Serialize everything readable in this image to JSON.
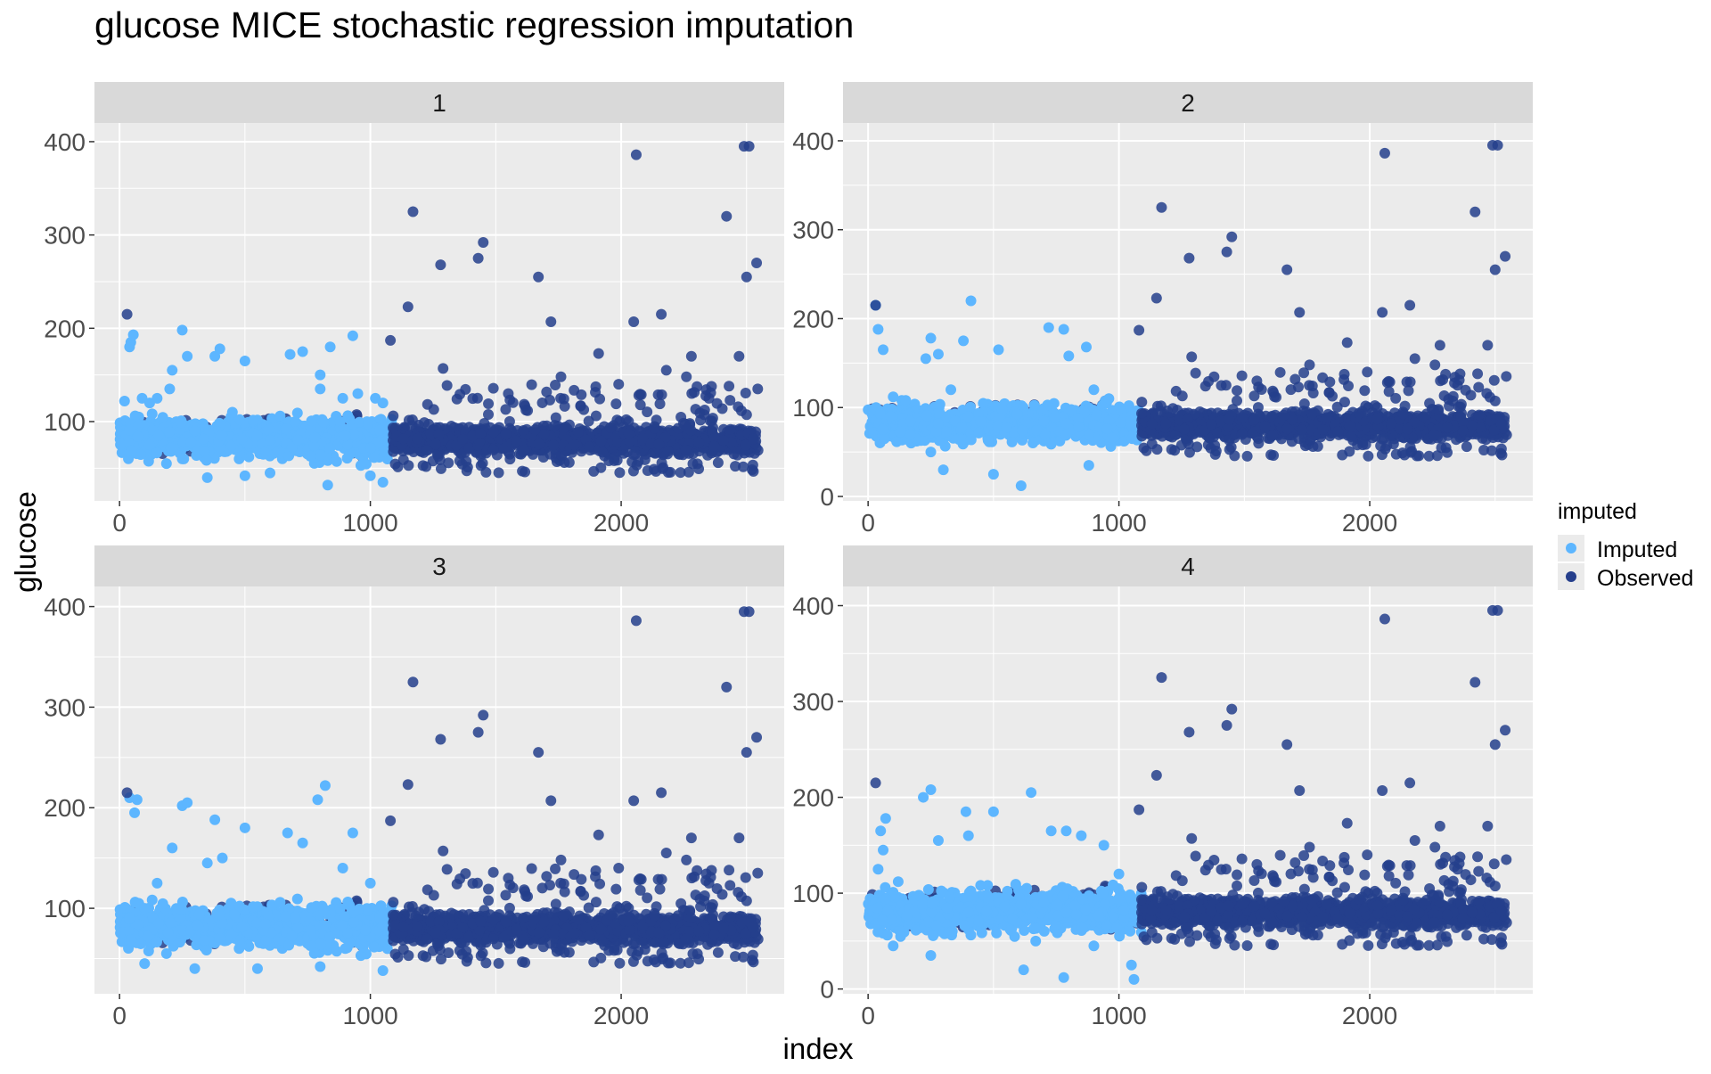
{
  "chart_data": {
    "type": "scatter",
    "title": "glucose MICE stochastic regression imputation",
    "xlabel": "index",
    "ylabel": "glucose",
    "legend": {
      "title": "imputed",
      "placement": "right",
      "entries": [
        {
          "label": "Imputed",
          "color": "#5DB6FF"
        },
        {
          "label": "Observed",
          "color": "#253F8C"
        }
      ]
    },
    "colors": {
      "imputed": "#5DB6FF",
      "observed": "#253F8C",
      "panel_bg": "#EBEBEB",
      "strip_bg": "#D9D9D9",
      "grid": "#FFFFFF"
    },
    "grid": true,
    "n_points": 2550,
    "imputed_index_range": [
      0,
      1090
    ],
    "observed_index_range": [
      0,
      2550
    ],
    "panels": [
      {
        "strip": "1",
        "xlim": [
          -100,
          2650
        ],
        "ylim": [
          15,
          420
        ],
        "x_ticks": [
          0,
          1000,
          2000
        ],
        "y_ticks": [
          100,
          200,
          300,
          400
        ],
        "imputed_points": [
          [
            20,
            122
          ],
          [
            40,
            180
          ],
          [
            45,
            185
          ],
          [
            55,
            193
          ],
          [
            90,
            125
          ],
          [
            120,
            120
          ],
          [
            150,
            125
          ],
          [
            200,
            135
          ],
          [
            210,
            155
          ],
          [
            250,
            198
          ],
          [
            270,
            170
          ],
          [
            380,
            170
          ],
          [
            400,
            178
          ],
          [
            500,
            165
          ],
          [
            680,
            172
          ],
          [
            730,
            175
          ],
          [
            800,
            135
          ],
          [
            840,
            180
          ],
          [
            890,
            125
          ],
          [
            930,
            192
          ],
          [
            1020,
            125
          ],
          [
            1050,
            120
          ],
          [
            120,
            75
          ],
          [
            300,
            90
          ],
          [
            600,
            80
          ],
          [
            900,
            85
          ],
          [
            350,
            40
          ],
          [
            500,
            42
          ],
          [
            830,
            32
          ],
          [
            1050,
            35
          ],
          [
            1000,
            42
          ],
          [
            600,
            45
          ],
          [
            250,
            60
          ],
          [
            700,
            100
          ],
          [
            450,
            110
          ],
          [
            950,
            130
          ],
          [
            800,
            150
          ]
        ]
      },
      {
        "strip": "2",
        "xlim": [
          -100,
          2650
        ],
        "ylim": [
          -5,
          420
        ],
        "x_ticks": [
          0,
          1000,
          2000
        ],
        "y_ticks": [
          0,
          100,
          200,
          300,
          400
        ],
        "imputed_points": [
          [
            30,
            215
          ],
          [
            40,
            188
          ],
          [
            60,
            165
          ],
          [
            100,
            112
          ],
          [
            150,
            108
          ],
          [
            230,
            155
          ],
          [
            250,
            178
          ],
          [
            280,
            160
          ],
          [
            330,
            120
          ],
          [
            380,
            175
          ],
          [
            410,
            220
          ],
          [
            520,
            165
          ],
          [
            720,
            190
          ],
          [
            780,
            188
          ],
          [
            800,
            158
          ],
          [
            870,
            168
          ],
          [
            900,
            120
          ],
          [
            960,
            110
          ],
          [
            300,
            30
          ],
          [
            500,
            25
          ],
          [
            610,
            12
          ],
          [
            880,
            35
          ],
          [
            250,
            50
          ],
          [
            1050,
            80
          ],
          [
            400,
            90
          ],
          [
            700,
            85
          ]
        ]
      },
      {
        "strip": "3",
        "xlim": [
          -100,
          2650
        ],
        "ylim": [
          15,
          420
        ],
        "x_ticks": [
          0,
          1000,
          2000
        ],
        "y_ticks": [
          100,
          200,
          300,
          400
        ],
        "imputed_points": [
          [
            40,
            210
          ],
          [
            60,
            195
          ],
          [
            70,
            208
          ],
          [
            100,
            100
          ],
          [
            150,
            125
          ],
          [
            210,
            160
          ],
          [
            250,
            202
          ],
          [
            270,
            205
          ],
          [
            350,
            145
          ],
          [
            380,
            188
          ],
          [
            410,
            150
          ],
          [
            500,
            180
          ],
          [
            670,
            175
          ],
          [
            730,
            165
          ],
          [
            790,
            208
          ],
          [
            820,
            222
          ],
          [
            890,
            140
          ],
          [
            930,
            175
          ],
          [
            1000,
            125
          ],
          [
            100,
            45
          ],
          [
            300,
            40
          ],
          [
            550,
            40
          ],
          [
            800,
            42
          ],
          [
            1050,
            38
          ],
          [
            400,
            70
          ],
          [
            700,
            90
          ],
          [
            900,
            60
          ]
        ]
      },
      {
        "strip": "4",
        "xlim": [
          -100,
          2650
        ],
        "ylim": [
          -5,
          420
        ],
        "x_ticks": [
          0,
          1000,
          2000
        ],
        "y_ticks": [
          0,
          100,
          200,
          300,
          400
        ],
        "imputed_points": [
          [
            40,
            125
          ],
          [
            50,
            165
          ],
          [
            60,
            145
          ],
          [
            70,
            178
          ],
          [
            120,
            112
          ],
          [
            220,
            200
          ],
          [
            250,
            208
          ],
          [
            280,
            155
          ],
          [
            390,
            185
          ],
          [
            400,
            160
          ],
          [
            500,
            185
          ],
          [
            650,
            205
          ],
          [
            730,
            165
          ],
          [
            790,
            165
          ],
          [
            850,
            160
          ],
          [
            940,
            150
          ],
          [
            1000,
            120
          ],
          [
            100,
            45
          ],
          [
            250,
            35
          ],
          [
            620,
            20
          ],
          [
            780,
            12
          ],
          [
            900,
            45
          ],
          [
            1050,
            25
          ],
          [
            1060,
            10
          ],
          [
            400,
            80
          ],
          [
            700,
            90
          ]
        ]
      }
    ],
    "observed_outliers": [
      [
        30,
        215
      ],
      [
        1080,
        187
      ],
      [
        1150,
        223
      ],
      [
        1170,
        325
      ],
      [
        1280,
        268
      ],
      [
        1290,
        157
      ],
      [
        1430,
        275
      ],
      [
        1450,
        292
      ],
      [
        1670,
        255
      ],
      [
        1720,
        207
      ],
      [
        1760,
        148
      ],
      [
        1910,
        173
      ],
      [
        2050,
        207
      ],
      [
        2060,
        386
      ],
      [
        2160,
        215
      ],
      [
        2180,
        155
      ],
      [
        2260,
        148
      ],
      [
        2280,
        170
      ],
      [
        2420,
        320
      ],
      [
        2430,
        138
      ],
      [
        2470,
        170
      ],
      [
        2490,
        395
      ],
      [
        2510,
        395
      ],
      [
        2500,
        255
      ],
      [
        2540,
        270
      ],
      [
        1550,
        130
      ],
      [
        1990,
        140
      ],
      [
        2350,
        125
      ]
    ]
  }
}
